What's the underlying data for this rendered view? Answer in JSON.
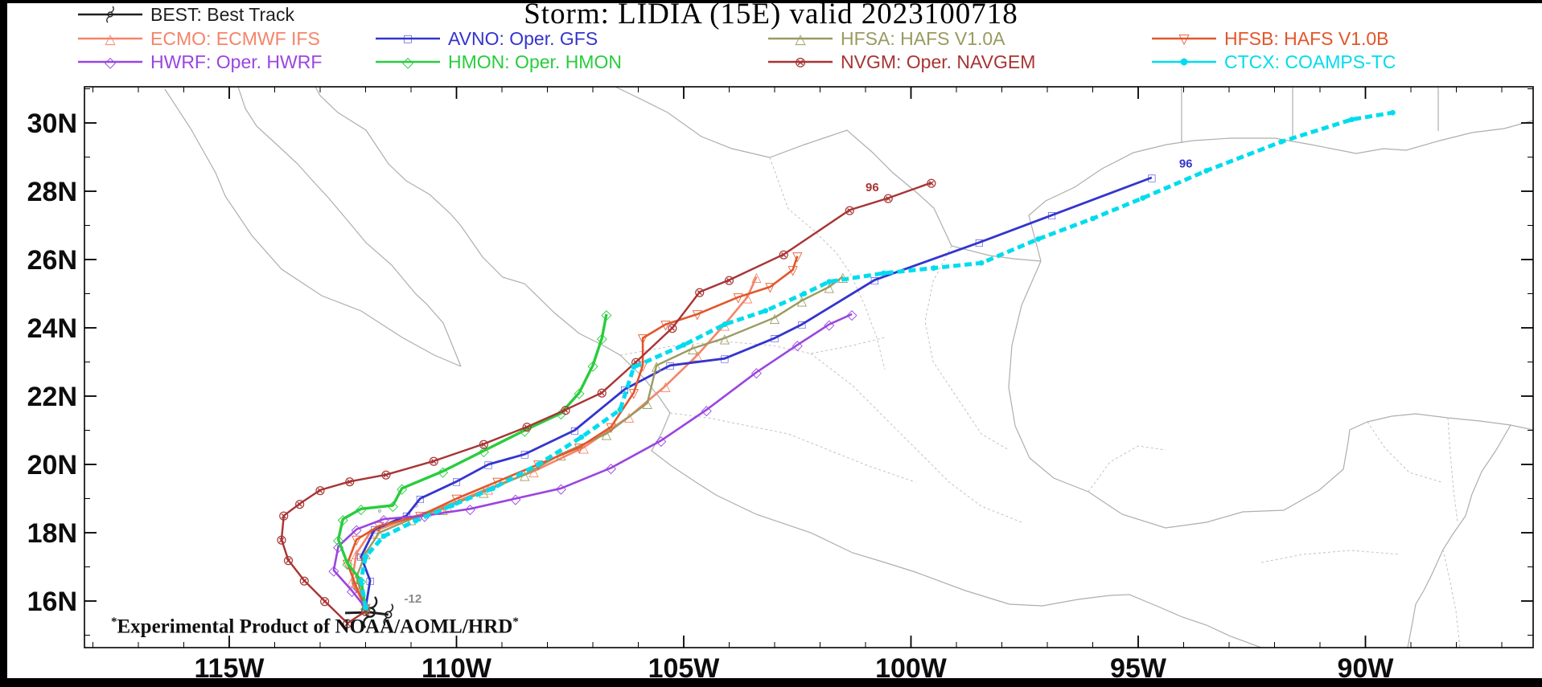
{
  "watermark": {
    "prefix": "*",
    "text": "Experimental Product of NOAA/AOML/HRD",
    "suffix": "*"
  },
  "chart_data": {
    "type": "line",
    "subtype": "tropical-cyclone-track-spaghetti-map",
    "title": "Storm: LIDIA (15E) valid 2023100718",
    "x_axis": {
      "unit": "degrees_west",
      "minor_step": 1,
      "range_lon_w": [
        118.2,
        86.3
      ],
      "ticks": [
        {
          "label": "115W",
          "lon": 115
        },
        {
          "label": "110W",
          "lon": 110
        },
        {
          "label": "105W",
          "lon": 105
        },
        {
          "label": "100W",
          "lon": 100
        },
        {
          "label": "95W",
          "lon": 95
        },
        {
          "label": "90W",
          "lon": 90
        }
      ]
    },
    "y_axis": {
      "unit": "degrees_north",
      "minor_step": 1,
      "range_lat_n": [
        14.6,
        31.1
      ],
      "ticks": [
        {
          "label": "16N",
          "lat": 16
        },
        {
          "label": "18N",
          "lat": 18
        },
        {
          "label": "20N",
          "lat": 20
        },
        {
          "label": "22N",
          "lat": 22
        },
        {
          "label": "24N",
          "lat": 24
        },
        {
          "label": "26N",
          "lat": 26
        },
        {
          "label": "28N",
          "lat": 28
        },
        {
          "label": "30N",
          "lat": 30
        }
      ]
    },
    "legend_rows": [
      [
        "BEST"
      ],
      [
        "ECMO",
        "AVNO",
        "HFSA",
        "HFSB"
      ],
      [
        "HWRF",
        "HMON",
        "NVGM",
        "CTCX"
      ]
    ],
    "series": [
      {
        "id": "BEST",
        "label": "BEST: Best Track",
        "color": "#1f1f1f",
        "marker": "hurricane",
        "width": 3,
        "points": [
          [
            112.45,
            15.65
          ],
          [
            111.9,
            15.67
          ],
          [
            111.5,
            15.6
          ]
        ]
      },
      {
        "id": "ECMO",
        "label": "ECMO: ECMWF IFS",
        "color": "#f58468",
        "marker": "triangle-up",
        "width": 2.6,
        "points": [
          [
            112.0,
            15.8
          ],
          [
            112.3,
            16.6
          ],
          [
            112.2,
            17.4
          ],
          [
            111.9,
            18.0
          ],
          [
            111.1,
            18.4
          ],
          [
            110.2,
            18.8
          ],
          [
            109.3,
            19.3
          ],
          [
            108.3,
            19.8
          ],
          [
            107.2,
            20.5
          ],
          [
            106.2,
            21.4
          ],
          [
            105.4,
            22.3
          ],
          [
            104.7,
            23.2
          ],
          [
            104.1,
            24.1
          ],
          [
            103.6,
            24.9
          ],
          [
            103.4,
            25.5
          ]
        ]
      },
      {
        "id": "AVNO",
        "label": "AVNO: Oper. GFS",
        "color": "#3434cf",
        "marker": "square",
        "width": 2.8,
        "points": [
          [
            112.0,
            15.8
          ],
          [
            111.9,
            16.6
          ],
          [
            112.1,
            17.3
          ],
          [
            111.8,
            18.1
          ],
          [
            111.1,
            18.5
          ],
          [
            110.8,
            19.0
          ],
          [
            110.0,
            19.5
          ],
          [
            109.3,
            20.0
          ],
          [
            108.5,
            20.3
          ],
          [
            107.4,
            21.0
          ],
          [
            106.3,
            22.2
          ],
          [
            105.3,
            22.9
          ],
          [
            104.1,
            23.1
          ],
          [
            103.0,
            23.7
          ],
          [
            102.4,
            24.1
          ],
          [
            100.8,
            25.4
          ],
          [
            98.5,
            26.5
          ],
          [
            96.9,
            27.3
          ],
          [
            94.7,
            28.4
          ]
        ]
      },
      {
        "id": "HFSA",
        "label": "HFSA: HAFS V1.0A",
        "color": "#9a9a60",
        "marker": "triangle-up",
        "width": 2.4,
        "points": [
          [
            112.0,
            15.8
          ],
          [
            112.2,
            16.7
          ],
          [
            112.0,
            17.4
          ],
          [
            111.7,
            18.0
          ],
          [
            111.0,
            18.4
          ],
          [
            110.3,
            18.7
          ],
          [
            109.4,
            19.2
          ],
          [
            108.5,
            19.7
          ],
          [
            107.7,
            20.3
          ],
          [
            106.7,
            20.9
          ],
          [
            105.8,
            21.8
          ],
          [
            105.6,
            22.9
          ],
          [
            104.8,
            23.4
          ],
          [
            104.1,
            23.7
          ],
          [
            103.0,
            24.3
          ],
          [
            102.4,
            24.8
          ],
          [
            101.8,
            25.2
          ],
          [
            101.5,
            25.5
          ]
        ]
      },
      {
        "id": "HFSB",
        "label": "HFSB: HAFS V1.0B",
        "color": "#e2562a",
        "marker": "triangle-down",
        "width": 2.6,
        "points": [
          [
            112.0,
            15.8
          ],
          [
            112.2,
            16.4
          ],
          [
            112.4,
            17.1
          ],
          [
            112.2,
            17.8
          ],
          [
            111.7,
            18.2
          ],
          [
            110.8,
            18.5
          ],
          [
            110.0,
            19.0
          ],
          [
            109.1,
            19.5
          ],
          [
            108.2,
            20.0
          ],
          [
            107.3,
            20.5
          ],
          [
            106.6,
            21.1
          ],
          [
            106.1,
            22.1
          ],
          [
            105.9,
            22.9
          ],
          [
            105.9,
            23.7
          ],
          [
            105.4,
            24.1
          ],
          [
            104.7,
            24.4
          ],
          [
            103.8,
            24.9
          ],
          [
            103.1,
            25.2
          ],
          [
            102.6,
            25.7
          ],
          [
            102.5,
            26.1
          ]
        ]
      },
      {
        "id": "HWRF",
        "label": "HWRF: Oper. HWRF",
        "color": "#9a45e0",
        "marker": "diamond",
        "width": 2.6,
        "points": [
          [
            112.0,
            15.8
          ],
          [
            112.3,
            16.3
          ],
          [
            112.7,
            16.9
          ],
          [
            112.6,
            17.6
          ],
          [
            112.2,
            18.1
          ],
          [
            111.6,
            18.4
          ],
          [
            110.7,
            18.5
          ],
          [
            109.7,
            18.7
          ],
          [
            108.7,
            19.0
          ],
          [
            107.7,
            19.3
          ],
          [
            106.6,
            19.9
          ],
          [
            105.5,
            20.7
          ],
          [
            104.5,
            21.6
          ],
          [
            103.4,
            22.7
          ],
          [
            102.5,
            23.5
          ],
          [
            101.8,
            24.1
          ],
          [
            101.3,
            24.4
          ]
        ]
      },
      {
        "id": "HMON",
        "label": "HMON: Oper. HMON",
        "color": "#29cc3d",
        "marker": "diamond",
        "width": 3.4,
        "points": [
          [
            112.0,
            15.8
          ],
          [
            112.1,
            16.6
          ],
          [
            112.4,
            17.1
          ],
          [
            112.6,
            17.8
          ],
          [
            112.5,
            18.4
          ],
          [
            112.1,
            18.7
          ],
          [
            111.4,
            18.8
          ],
          [
            111.2,
            19.3
          ],
          [
            110.3,
            19.8
          ],
          [
            109.4,
            20.4
          ],
          [
            108.5,
            21.0
          ],
          [
            107.7,
            21.5
          ],
          [
            107.3,
            22.1
          ],
          [
            107.0,
            22.9
          ],
          [
            106.8,
            23.7
          ],
          [
            106.7,
            24.4
          ]
        ]
      },
      {
        "id": "NVGM",
        "label": "NVGM: Oper. NAVGEM",
        "color": "#a83434",
        "marker": "circled-x",
        "width": 2.4,
        "points": [
          [
            112.0,
            15.7
          ],
          [
            112.4,
            15.35
          ],
          [
            112.9,
            16.0
          ],
          [
            113.35,
            16.6
          ],
          [
            113.7,
            17.2
          ],
          [
            113.85,
            17.8
          ],
          [
            113.8,
            18.5
          ],
          [
            113.45,
            18.85
          ],
          [
            113.0,
            19.25
          ],
          [
            112.35,
            19.5
          ],
          [
            111.55,
            19.7
          ],
          [
            110.5,
            20.1
          ],
          [
            109.4,
            20.6
          ],
          [
            108.45,
            21.1
          ],
          [
            107.6,
            21.6
          ],
          [
            106.8,
            22.1
          ],
          [
            106.05,
            23.0
          ],
          [
            105.25,
            24.0
          ],
          [
            104.65,
            25.05
          ],
          [
            104.0,
            25.4
          ],
          [
            102.8,
            26.15
          ],
          [
            101.35,
            27.45
          ],
          [
            100.5,
            27.8
          ],
          [
            99.55,
            28.25
          ]
        ]
      },
      {
        "id": "CTCX",
        "label": "CTCX: COAMPS-TC",
        "color": "#00dcee",
        "marker": "dot",
        "width": 5,
        "dash": "9 5",
        "points": [
          [
            112.0,
            15.8
          ],
          [
            112.1,
            16.6
          ],
          [
            112.0,
            17.3
          ],
          [
            111.6,
            17.9
          ],
          [
            110.9,
            18.35
          ],
          [
            110.1,
            18.8
          ],
          [
            109.2,
            19.3
          ],
          [
            108.2,
            20.0
          ],
          [
            107.25,
            20.8
          ],
          [
            106.4,
            21.6
          ],
          [
            106.1,
            22.85
          ],
          [
            105.0,
            23.5
          ],
          [
            104.1,
            24.1
          ],
          [
            103.2,
            24.5
          ],
          [
            102.35,
            25.0
          ],
          [
            101.8,
            25.35
          ],
          [
            100.6,
            25.6
          ],
          [
            99.5,
            25.75
          ],
          [
            98.45,
            25.9
          ],
          [
            97.2,
            26.6
          ],
          [
            96.0,
            27.2
          ],
          [
            94.9,
            27.8
          ],
          [
            93.5,
            28.6
          ],
          [
            91.85,
            29.45
          ],
          [
            90.3,
            30.1
          ],
          [
            89.4,
            30.3
          ]
        ]
      }
    ],
    "annotations": [
      {
        "text": "-12",
        "lon": 111.15,
        "lat": 15.95,
        "color": "#8a8a8a"
      },
      {
        "text": "96",
        "lon": 94.1,
        "lat": 28.7,
        "color": "#3434cf"
      },
      {
        "text": "96",
        "lon": 101.0,
        "lat": 28.0,
        "color": "#a83434"
      }
    ]
  }
}
